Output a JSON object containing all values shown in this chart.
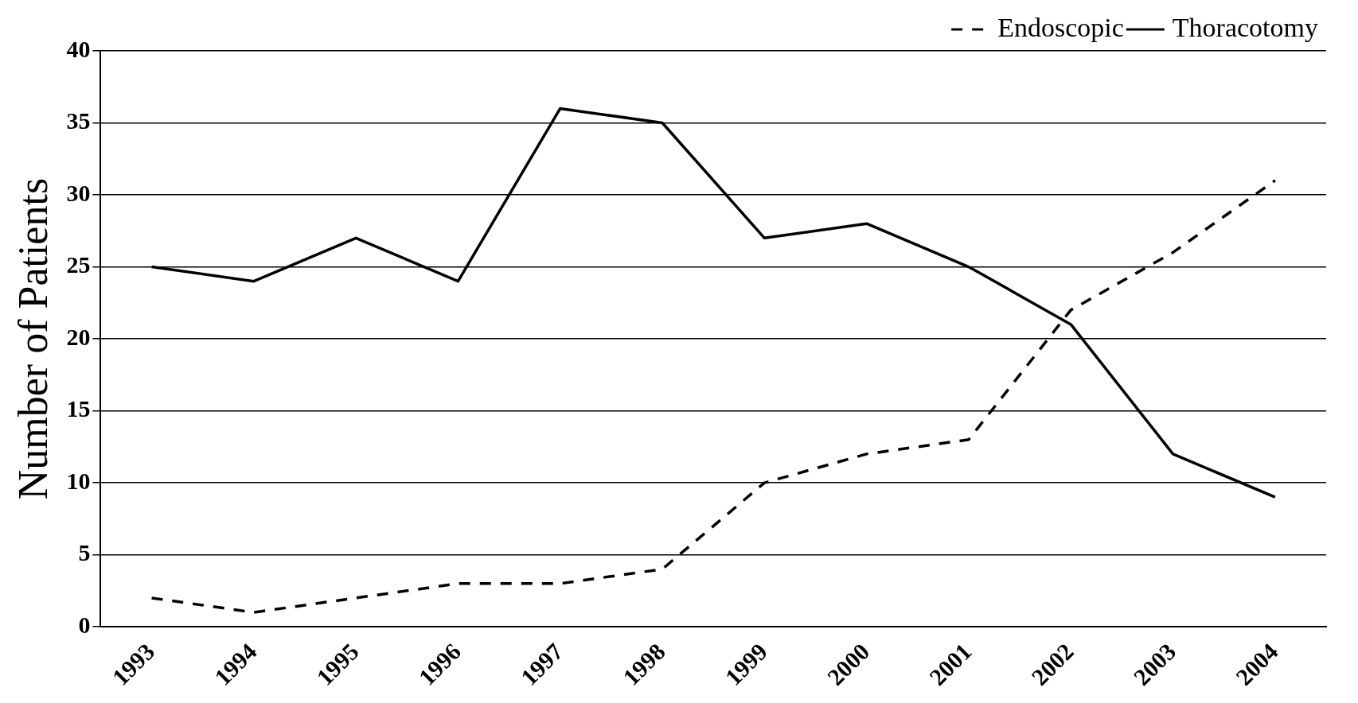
{
  "chart_data": {
    "type": "line",
    "ylabel": "Number of Patients",
    "categories": [
      "1993",
      "1994",
      "1995",
      "1996",
      "1997",
      "1998",
      "1999",
      "2000",
      "2001",
      "2002",
      "2003",
      "2004"
    ],
    "series": [
      {
        "name": "Endoscopic",
        "color": "#000000",
        "line_style": "dashed",
        "values": [
          2,
          1,
          2,
          3,
          3,
          4,
          10,
          12,
          13,
          22,
          26,
          31
        ]
      },
      {
        "name": "Thoracotomy",
        "color": "#000000",
        "line_style": "solid",
        "values": [
          25,
          24,
          27,
          24,
          36,
          35,
          27,
          28,
          25,
          21,
          12,
          9
        ]
      }
    ],
    "ylim": [
      0,
      40
    ],
    "yticks": [
      0,
      5,
      10,
      15,
      20,
      25,
      30,
      35,
      40
    ],
    "grid": "y",
    "legend": "top right",
    "marker": "none"
  }
}
